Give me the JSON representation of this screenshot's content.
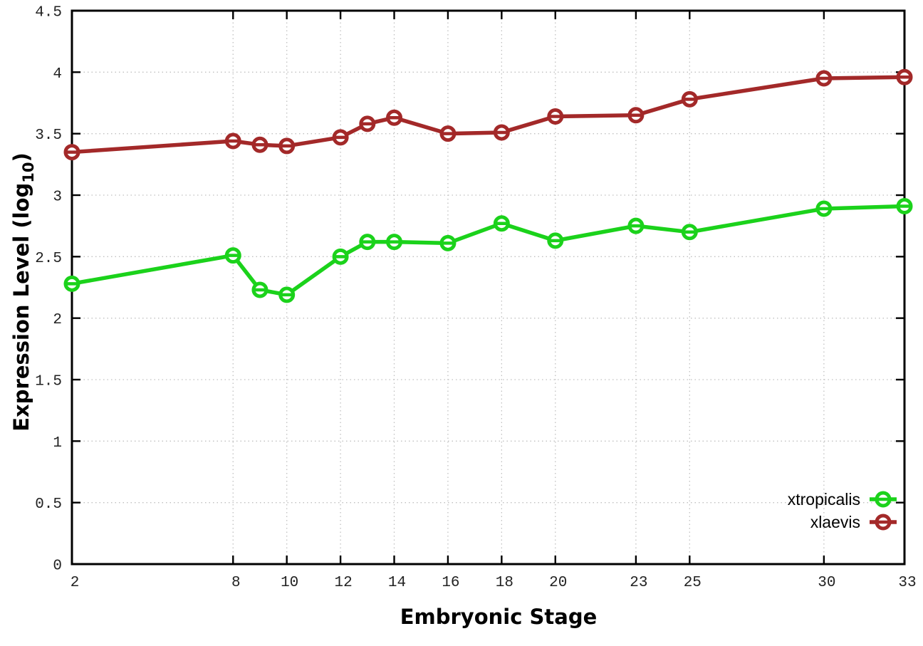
{
  "chart_data": {
    "type": "line",
    "title": "",
    "xlabel": "Embryonic Stage",
    "ylabel": "Expression Level (log10)",
    "ylabel_parts": [
      {
        "text": "Expression Level (log",
        "sub": false
      },
      {
        "text": "10",
        "sub": true
      },
      {
        "text": ")",
        "sub": false
      }
    ],
    "x": [
      2,
      8,
      9,
      10,
      12,
      13,
      14,
      16,
      18,
      20,
      23,
      25,
      30,
      33
    ],
    "series": [
      {
        "name": "xtropicalis",
        "color": "#1bd21b",
        "values": [
          2.28,
          2.51,
          2.23,
          2.19,
          2.5,
          2.62,
          2.62,
          2.61,
          2.77,
          2.63,
          2.75,
          2.7,
          2.89,
          2.91
        ]
      },
      {
        "name": "xlaevis",
        "color": "#a32929",
        "values": [
          3.35,
          3.44,
          3.41,
          3.4,
          3.47,
          3.58,
          3.63,
          3.5,
          3.51,
          3.64,
          3.65,
          3.78,
          3.95,
          3.96
        ]
      }
    ],
    "xlim": [
      2,
      33
    ],
    "ylim": [
      0,
      4.5
    ],
    "xtick_labels": [
      "2",
      "8",
      "10",
      "12",
      "14",
      "16",
      "18",
      "20",
      "23",
      "25",
      "30",
      "33"
    ],
    "xtick_values": [
      2,
      8,
      10,
      12,
      14,
      16,
      18,
      20,
      23,
      25,
      30,
      33
    ],
    "ytick_labels": [
      "0",
      "0.5",
      "1",
      "1.5",
      "2",
      "2.5",
      "3",
      "3.5",
      "4",
      "4.5"
    ],
    "ytick_values": [
      0,
      0.5,
      1,
      1.5,
      2,
      2.5,
      3,
      3.5,
      4,
      4.5
    ],
    "grid": "dotted",
    "legend_position": "bottom-right",
    "colors": {
      "background": "#ffffff",
      "axis": "#000000",
      "grid": "#c0c0c0",
      "tick_text": "#222222"
    }
  }
}
